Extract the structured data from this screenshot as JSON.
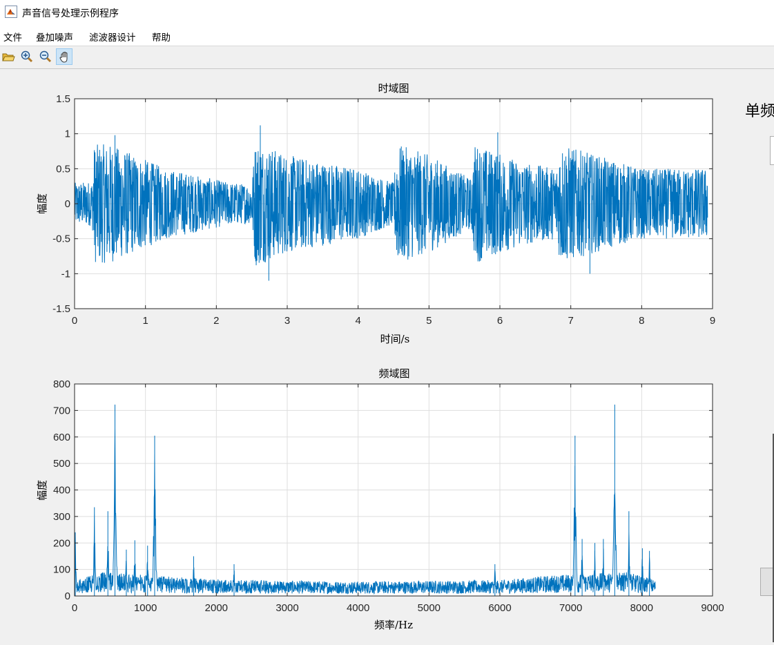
{
  "window": {
    "title": "声音信号处理示例程序",
    "menu": [
      "文件",
      "叠加噪声",
      "滤波器设计",
      "帮助"
    ]
  },
  "toolbar": {
    "buttons": [
      {
        "icon": "open-folder-icon",
        "active": false
      },
      {
        "icon": "zoom-in-icon",
        "active": false
      },
      {
        "icon": "zoom-out-icon",
        "active": false
      },
      {
        "icon": "pan-hand-icon",
        "active": true
      }
    ]
  },
  "side_panel": {
    "label": "单频"
  },
  "colors": {
    "series": "#0072bd",
    "grid": "#dedede",
    "axes": "#262626"
  },
  "chart_data": [
    {
      "type": "line",
      "title": "时域图",
      "xlabel": "时间/s",
      "ylabel": "幅度",
      "xlim": [
        0,
        9
      ],
      "ylim": [
        -1.5,
        1.5
      ],
      "xticks": [
        0,
        1,
        2,
        3,
        4,
        5,
        6,
        7,
        8,
        9
      ],
      "yticks": [
        -1.5,
        -1,
        -0.5,
        0,
        0.5,
        1,
        1.5
      ],
      "ytick_labels": [
        "-1.5",
        "-1",
        "-0.5",
        "0",
        "0.5",
        "1",
        "1.5"
      ],
      "grid": true,
      "signal_end": 8.93,
      "envelope": [
        [
          0,
          0.3
        ],
        [
          0.25,
          0.32
        ],
        [
          0.28,
          0.85
        ],
        [
          0.5,
          0.85
        ],
        [
          1.3,
          0.5
        ],
        [
          2.2,
          0.3
        ],
        [
          2.5,
          0.28
        ],
        [
          2.55,
          0.9
        ],
        [
          3.0,
          0.7
        ],
        [
          4.0,
          0.5
        ],
        [
          4.5,
          0.3
        ],
        [
          4.55,
          0.85
        ],
        [
          5.0,
          0.7
        ],
        [
          5.6,
          0.35
        ],
        [
          5.65,
          0.85
        ],
        [
          6.3,
          0.6
        ],
        [
          6.8,
          0.5
        ],
        [
          6.85,
          0.85
        ],
        [
          7.5,
          0.65
        ],
        [
          8.0,
          0.5
        ],
        [
          8.93,
          0.5
        ]
      ],
      "peaks": [
        {
          "x": 0.57,
          "y": 0.98
        },
        {
          "x": 2.62,
          "y": 1.12
        },
        {
          "x": 2.74,
          "y": -1.1
        },
        {
          "x": 5.97,
          "y": 1.02
        },
        {
          "x": 7.27,
          "y": -1.0
        }
      ]
    },
    {
      "type": "line",
      "title": "频域图",
      "xlabel": "频率/Hz",
      "ylabel": "幅度",
      "xlim": [
        0,
        9000
      ],
      "ylim": [
        0,
        800
      ],
      "xticks": [
        0,
        1000,
        2000,
        3000,
        4000,
        5000,
        6000,
        7000,
        8000,
        9000
      ],
      "yticks": [
        0,
        100,
        200,
        300,
        400,
        500,
        600,
        700,
        800
      ],
      "grid": true,
      "signal_end": 8192,
      "baseline": [
        [
          0,
          60
        ],
        [
          400,
          90
        ],
        [
          1500,
          70
        ],
        [
          2200,
          60
        ],
        [
          4000,
          55
        ],
        [
          6000,
          60
        ],
        [
          6800,
          80
        ],
        [
          7800,
          90
        ],
        [
          8192,
          60
        ]
      ],
      "peaks": [
        {
          "x": 10,
          "y": 240
        },
        {
          "x": 280,
          "y": 335
        },
        {
          "x": 470,
          "y": 320
        },
        {
          "x": 570,
          "y": 722
        },
        {
          "x": 730,
          "y": 175
        },
        {
          "x": 850,
          "y": 210
        },
        {
          "x": 1030,
          "y": 190
        },
        {
          "x": 1130,
          "y": 605
        },
        {
          "x": 1680,
          "y": 150
        },
        {
          "x": 2250,
          "y": 120
        },
        {
          "x": 5930,
          "y": 120
        },
        {
          "x": 7060,
          "y": 605
        },
        {
          "x": 7160,
          "y": 215
        },
        {
          "x": 7340,
          "y": 200
        },
        {
          "x": 7460,
          "y": 215
        },
        {
          "x": 7620,
          "y": 722
        },
        {
          "x": 7820,
          "y": 320
        },
        {
          "x": 8010,
          "y": 180
        },
        {
          "x": 8110,
          "y": 170
        }
      ]
    }
  ]
}
